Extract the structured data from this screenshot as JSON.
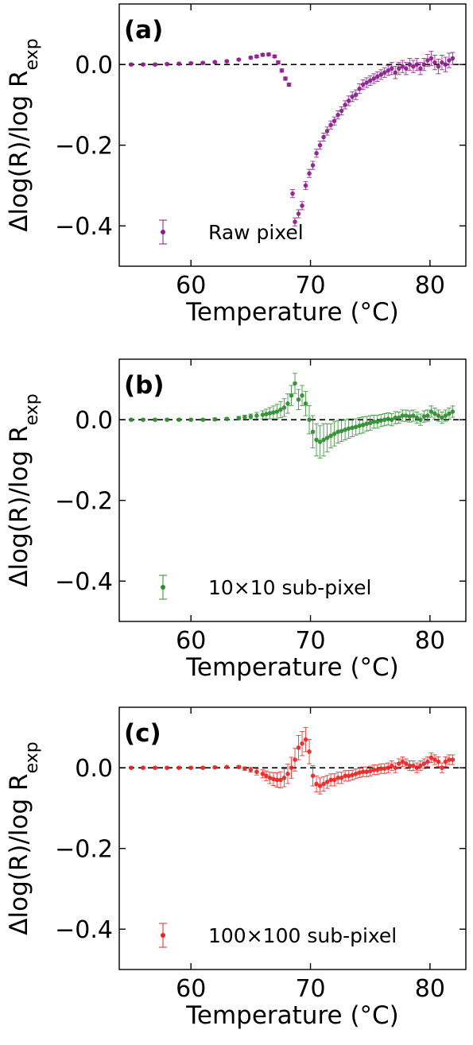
{
  "chart_data": [
    {
      "type": "scatter",
      "panel_label": "(a)",
      "xlabel": "Temperature (°C)",
      "ylabel": "Δlog(R)/log R_exp",
      "xlim": [
        54,
        83
      ],
      "ylim": [
        -0.5,
        0.15
      ],
      "xticks": [
        60,
        70,
        80
      ],
      "xtick_labels": [
        "60",
        "70",
        "80"
      ],
      "yticks": [
        0.0,
        -0.2,
        -0.4
      ],
      "ytick_labels": [
        "0.0",
        "−0.2",
        "−0.4"
      ],
      "reference_line": 0.0,
      "legend": "top-left-lower",
      "color": "#8b1a8b",
      "series": [
        {
          "name": "Raw pixel",
          "x": [
            55,
            56,
            57,
            58,
            59,
            60,
            61,
            62,
            63,
            64,
            65,
            65.5,
            66,
            66.5,
            67,
            67.3,
            67.6,
            67.9,
            68.2,
            68.5,
            68.7,
            69.0,
            69.3,
            69.6,
            69.9,
            70.2,
            70.5,
            70.8,
            71.1,
            71.4,
            71.7,
            72.0,
            72.3,
            72.6,
            72.9,
            73.2,
            73.5,
            73.8,
            74.1,
            74.4,
            74.7,
            75.0,
            75.3,
            75.6,
            75.9,
            76.2,
            76.5,
            76.8,
            77.1,
            77.4,
            77.7,
            78.0,
            78.3,
            78.6,
            78.9,
            79.2,
            79.5,
            79.8,
            80.1,
            80.4,
            80.7,
            81.0,
            81.3,
            81.6,
            81.9
          ],
          "y": [
            0.0,
            0.0,
            0.0,
            0.001,
            0.002,
            0.003,
            0.004,
            0.006,
            0.008,
            0.012,
            0.017,
            0.02,
            0.024,
            0.025,
            0.02,
            0.005,
            -0.015,
            -0.035,
            -0.05,
            -0.32,
            -0.39,
            -0.37,
            -0.35,
            -0.3,
            -0.27,
            -0.25,
            -0.22,
            -0.2,
            -0.18,
            -0.165,
            -0.15,
            -0.14,
            -0.125,
            -0.115,
            -0.1,
            -0.09,
            -0.08,
            -0.075,
            -0.06,
            -0.05,
            -0.045,
            -0.04,
            -0.035,
            -0.03,
            -0.025,
            -0.02,
            -0.015,
            -0.01,
            -0.02,
            -0.01,
            -0.005,
            -0.01,
            0.0,
            -0.005,
            0.0,
            -0.01,
            0.0,
            0.01,
            0.015,
            0.005,
            -0.005,
            0.005,
            0.0,
            0.01,
            0.015
          ],
          "err": [
            0.002,
            0.002,
            0.002,
            0.002,
            0.002,
            0.002,
            0.002,
            0.002,
            0.002,
            0.002,
            0.003,
            0.003,
            0.003,
            0.003,
            0.003,
            0.004,
            0.004,
            0.004,
            0.004,
            0.01,
            0.01,
            0.01,
            0.01,
            0.01,
            0.01,
            0.01,
            0.01,
            0.01,
            0.01,
            0.01,
            0.01,
            0.01,
            0.01,
            0.01,
            0.01,
            0.012,
            0.012,
            0.012,
            0.012,
            0.012,
            0.012,
            0.012,
            0.012,
            0.012,
            0.012,
            0.012,
            0.012,
            0.015,
            0.015,
            0.015,
            0.015,
            0.015,
            0.015,
            0.015,
            0.015,
            0.015,
            0.015,
            0.015,
            0.018,
            0.018,
            0.018,
            0.018,
            0.018,
            0.018,
            0.015
          ]
        }
      ]
    },
    {
      "type": "scatter",
      "panel_label": "(b)",
      "xlabel": "Temperature (°C)",
      "ylabel": "Δlog(R)/log R_exp",
      "xlim": [
        54,
        83
      ],
      "ylim": [
        -0.5,
        0.15
      ],
      "xticks": [
        60,
        70,
        80
      ],
      "xtick_labels": [
        "60",
        "70",
        "80"
      ],
      "yticks": [
        0.0,
        -0.2,
        -0.4
      ],
      "ytick_labels": [
        "0.0",
        "−0.2",
        "−0.4"
      ],
      "reference_line": 0.0,
      "legend": "top-left-lower",
      "color": "#2e8b2e",
      "series": [
        {
          "name": "10×10 sub-pixel",
          "x": [
            55,
            56,
            57,
            58,
            59,
            60,
            61,
            62,
            63,
            64,
            64.5,
            65,
            65.5,
            66,
            66.3,
            66.6,
            66.9,
            67.2,
            67.5,
            67.8,
            68.1,
            68.4,
            68.7,
            69.0,
            69.3,
            69.6,
            69.9,
            70.2,
            70.5,
            70.8,
            71.1,
            71.4,
            71.7,
            72.0,
            72.3,
            72.6,
            72.9,
            73.2,
            73.5,
            73.8,
            74.1,
            74.4,
            74.7,
            75.0,
            75.3,
            75.6,
            75.9,
            76.2,
            76.5,
            76.8,
            77.1,
            77.4,
            77.7,
            78.0,
            78.3,
            78.6,
            78.9,
            79.2,
            79.5,
            79.8,
            80.1,
            80.4,
            80.7,
            81.0,
            81.3,
            81.6,
            81.9
          ],
          "y": [
            0.0,
            0.0,
            0.0,
            0.0,
            0.0,
            0.0,
            0.0,
            0.001,
            0.002,
            0.004,
            0.006,
            0.008,
            0.01,
            0.012,
            0.014,
            0.016,
            0.018,
            0.02,
            0.025,
            0.03,
            0.04,
            0.06,
            0.09,
            0.05,
            0.06,
            0.04,
            0.0,
            -0.03,
            -0.05,
            -0.055,
            -0.05,
            -0.045,
            -0.04,
            -0.035,
            -0.03,
            -0.028,
            -0.025,
            -0.022,
            -0.02,
            -0.018,
            -0.015,
            -0.013,
            -0.01,
            -0.008,
            -0.005,
            -0.005,
            -0.002,
            0.0,
            0.002,
            0.0,
            0.005,
            0.005,
            0.01,
            0.01,
            0.008,
            0.01,
            0.005,
            0.0,
            0.008,
            0.01,
            0.02,
            0.015,
            0.01,
            0.005,
            0.01,
            0.015,
            0.02
          ],
          "err": [
            0.002,
            0.002,
            0.002,
            0.002,
            0.002,
            0.002,
            0.002,
            0.003,
            0.003,
            0.004,
            0.005,
            0.006,
            0.008,
            0.01,
            0.012,
            0.014,
            0.016,
            0.018,
            0.02,
            0.022,
            0.024,
            0.025,
            0.025,
            0.025,
            0.025,
            0.03,
            0.035,
            0.04,
            0.04,
            0.04,
            0.04,
            0.035,
            0.03,
            0.03,
            0.028,
            0.026,
            0.025,
            0.024,
            0.022,
            0.02,
            0.02,
            0.02,
            0.018,
            0.018,
            0.016,
            0.016,
            0.015,
            0.015,
            0.015,
            0.015,
            0.015,
            0.014,
            0.014,
            0.014,
            0.014,
            0.014,
            0.014,
            0.014,
            0.014,
            0.014,
            0.014,
            0.014,
            0.014,
            0.014,
            0.014,
            0.014,
            0.014
          ]
        }
      ]
    },
    {
      "type": "scatter",
      "panel_label": "(c)",
      "xlabel": "Temperature (°C)",
      "ylabel": "Δlog(R)/log R_exp",
      "xlim": [
        54,
        83
      ],
      "ylim": [
        -0.5,
        0.15
      ],
      "xticks": [
        60,
        70,
        80
      ],
      "xtick_labels": [
        "60",
        "70",
        "80"
      ],
      "yticks": [
        0.0,
        -0.2,
        -0.4
      ],
      "ytick_labels": [
        "0.0",
        "−0.2",
        "−0.4"
      ],
      "reference_line": 0.0,
      "legend": "top-left-lower",
      "color": "#e8231f",
      "series": [
        {
          "name": "100×100 sub-pixel",
          "x": [
            55,
            56,
            57,
            58,
            59,
            60,
            61,
            62,
            63,
            64,
            64.5,
            65,
            65.5,
            66,
            66.3,
            66.6,
            66.9,
            67.2,
            67.5,
            67.8,
            68.1,
            68.4,
            68.7,
            69.0,
            69.3,
            69.6,
            69.9,
            70.2,
            70.5,
            70.8,
            71.1,
            71.4,
            71.7,
            72.0,
            72.3,
            72.6,
            72.9,
            73.2,
            73.5,
            73.8,
            74.1,
            74.4,
            74.7,
            75.0,
            75.3,
            75.6,
            75.9,
            76.2,
            76.5,
            76.8,
            77.1,
            77.4,
            77.7,
            78.0,
            78.3,
            78.6,
            78.9,
            79.2,
            79.5,
            79.8,
            80.1,
            80.4,
            80.7,
            81.0,
            81.3,
            81.6,
            81.9
          ],
          "y": [
            0.0,
            0.0,
            0.0,
            0.0,
            0.0,
            0.0,
            0.0,
            0.001,
            0.002,
            0.002,
            -0.002,
            -0.005,
            -0.01,
            -0.015,
            -0.02,
            -0.025,
            -0.028,
            -0.03,
            -0.03,
            -0.025,
            -0.015,
            0.0,
            0.02,
            0.05,
            0.06,
            0.07,
            0.04,
            -0.02,
            -0.04,
            -0.045,
            -0.04,
            -0.035,
            -0.03,
            -0.03,
            -0.025,
            -0.025,
            -0.02,
            -0.02,
            -0.018,
            -0.015,
            -0.012,
            -0.01,
            -0.01,
            -0.008,
            -0.005,
            -0.005,
            -0.002,
            -0.002,
            0.0,
            0.005,
            0.0,
            0.01,
            0.015,
            0.01,
            0.005,
            0.005,
            0.0,
            0.005,
            0.01,
            0.015,
            0.025,
            0.02,
            0.015,
            0.0,
            0.015,
            0.02,
            0.02
          ],
          "err": [
            0.002,
            0.002,
            0.002,
            0.002,
            0.002,
            0.002,
            0.002,
            0.002,
            0.002,
            0.003,
            0.004,
            0.006,
            0.008,
            0.01,
            0.012,
            0.014,
            0.016,
            0.018,
            0.02,
            0.022,
            0.024,
            0.026,
            0.028,
            0.03,
            0.03,
            0.03,
            0.03,
            0.025,
            0.02,
            0.02,
            0.018,
            0.016,
            0.015,
            0.015,
            0.014,
            0.014,
            0.013,
            0.013,
            0.012,
            0.012,
            0.012,
            0.012,
            0.012,
            0.012,
            0.012,
            0.012,
            0.012,
            0.012,
            0.012,
            0.012,
            0.012,
            0.012,
            0.012,
            0.012,
            0.012,
            0.012,
            0.012,
            0.012,
            0.012,
            0.012,
            0.012,
            0.012,
            0.012,
            0.012,
            0.012,
            0.012,
            0.012
          ]
        }
      ]
    }
  ]
}
